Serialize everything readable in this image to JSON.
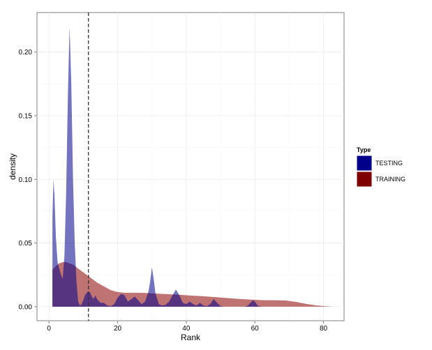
{
  "chart_data": {
    "type": "area",
    "xlabel": "Rank",
    "ylabel": "density",
    "xlim": [
      -3.5,
      86
    ],
    "ylim": [
      -0.011,
      0.231
    ],
    "x_ticks": [
      0,
      20,
      40,
      60,
      80
    ],
    "y_ticks": [
      0.0,
      0.05,
      0.1,
      0.15,
      0.2
    ],
    "x_tick_labels": [
      "0",
      "20",
      "40",
      "60",
      "80"
    ],
    "y_tick_labels": [
      "0.00",
      "0.05",
      "0.10",
      "0.15",
      "0.20"
    ],
    "grid": true,
    "vline": {
      "x": 11.5,
      "style": "dashed"
    },
    "legend": {
      "title": "Type",
      "position": "right",
      "entries": [
        {
          "label": "TESTING",
          "color": "#00008B"
        },
        {
          "label": "TRAINING",
          "color": "#8B0000"
        }
      ]
    },
    "series": [
      {
        "name": "TRAINING",
        "color": "#8B0000",
        "opacity": 0.55,
        "x": [
          1,
          2,
          3,
          4,
          5,
          6,
          7,
          8,
          9,
          10,
          12,
          14,
          16,
          18,
          20,
          22,
          25,
          28,
          30,
          32,
          35,
          38,
          40,
          45,
          50,
          55,
          60,
          63,
          66,
          69,
          72,
          75,
          78,
          81,
          83
        ],
        "y": [
          0.029,
          0.032,
          0.034,
          0.035,
          0.035,
          0.034,
          0.033,
          0.031,
          0.029,
          0.027,
          0.023,
          0.019,
          0.016,
          0.013,
          0.0115,
          0.011,
          0.011,
          0.0108,
          0.0105,
          0.0102,
          0.0098,
          0.0094,
          0.009,
          0.0082,
          0.0072,
          0.0062,
          0.0054,
          0.0051,
          0.0051,
          0.0049,
          0.0038,
          0.0022,
          0.001,
          0.0003,
          0.0
        ]
      },
      {
        "name": "TESTING",
        "color": "#00008B",
        "opacity": 0.55,
        "x": [
          1,
          1.3,
          1.6,
          2,
          2.5,
          3,
          3.5,
          4,
          4.5,
          5,
          5.5,
          6,
          6.5,
          7,
          7.5,
          8,
          8.5,
          9,
          9.5,
          10,
          10.5,
          11,
          11.5,
          12,
          12.5,
          13,
          13.5,
          14,
          15,
          16,
          17,
          18,
          19,
          20,
          21,
          22,
          23,
          24,
          25,
          26,
          27,
          28,
          29,
          29.5,
          30,
          30.5,
          31,
          32,
          33,
          34,
          35,
          36,
          37,
          38,
          39,
          40,
          41,
          42,
          43,
          44,
          45,
          46,
          47,
          48,
          49,
          50,
          51,
          57,
          58,
          59,
          59.5,
          60,
          60.5,
          61,
          62
        ],
        "y": [
          0.07,
          0.1,
          0.087,
          0.055,
          0.035,
          0.03,
          0.025,
          0.022,
          0.04,
          0.09,
          0.165,
          0.22,
          0.175,
          0.1,
          0.05,
          0.02,
          0.004,
          0.001,
          0.002,
          0.005,
          0.009,
          0.011,
          0.012,
          0.011,
          0.008,
          0.006,
          0.009,
          0.006,
          0.003,
          0.003,
          0.001,
          0.0005,
          0.002,
          0.007,
          0.01,
          0.009,
          0.004,
          0.006,
          0.008,
          0.005,
          0.002,
          0.004,
          0.012,
          0.02,
          0.031,
          0.022,
          0.011,
          0.002,
          0.001,
          0.0015,
          0.004,
          0.009,
          0.0135,
          0.009,
          0.003,
          0.002,
          0.004,
          0.002,
          0.001,
          0.003,
          0.001,
          0.0005,
          0.002,
          0.006,
          0.003,
          0.0005,
          0.0,
          0.0,
          0.001,
          0.004,
          0.005,
          0.004,
          0.002,
          0.0005,
          0.0
        ]
      }
    ]
  }
}
